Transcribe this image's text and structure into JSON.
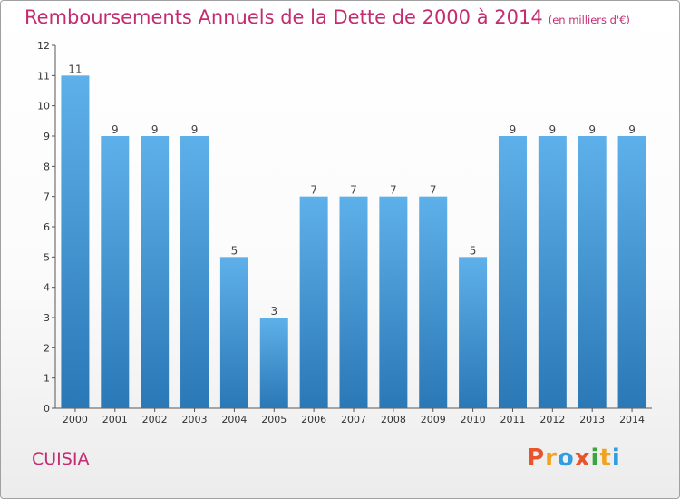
{
  "header": {
    "title": "Remboursements Annuels de la Dette de 2000 à 2014",
    "unit": "(en milliers d'€)"
  },
  "footer": {
    "commune": "CUISIA",
    "logo": [
      "P",
      "r",
      "o",
      "x",
      "i",
      "t",
      "i"
    ]
  },
  "colors": {
    "title": "#c42c72",
    "bar_light": "#5eb0ea",
    "bar_dark": "#2a78b6",
    "logo": [
      "#e8542c",
      "#f2a21c",
      "#2f9de0",
      "#e8542c",
      "#3aa53a",
      "#f2a21c",
      "#2f9de0"
    ]
  },
  "chart_data": {
    "type": "bar",
    "categories": [
      "2000",
      "2001",
      "2002",
      "2003",
      "2004",
      "2005",
      "2006",
      "2007",
      "2008",
      "2009",
      "2010",
      "2011",
      "2012",
      "2013",
      "2014"
    ],
    "values": [
      11,
      9,
      9,
      9,
      5,
      3,
      7,
      7,
      7,
      7,
      5,
      9,
      9,
      9,
      9
    ],
    "ylim": [
      0,
      12
    ],
    "yticks": [
      "0",
      "1",
      "2",
      "3",
      "4",
      "5",
      "6",
      "7",
      "8",
      "9",
      "10",
      "11",
      "12"
    ],
    "grid": false,
    "legend": "none"
  }
}
